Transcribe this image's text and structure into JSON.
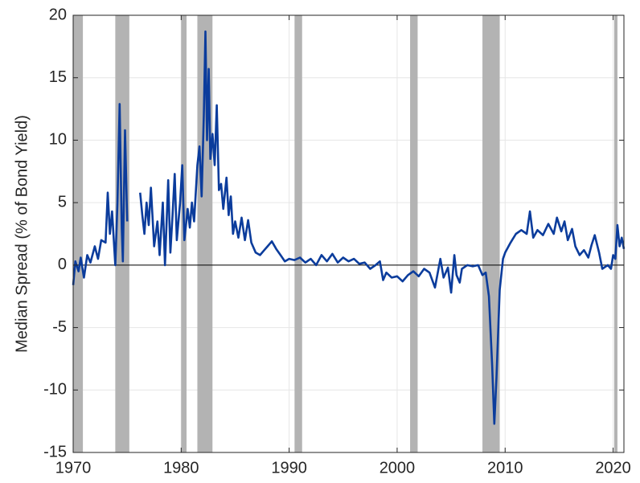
{
  "chart_data": {
    "type": "line",
    "y_label": "Median Spread (% of Bond Yield)",
    "xlim": [
      1970,
      2021
    ],
    "ylim": [
      -15,
      20
    ],
    "xticks": [
      1970,
      1980,
      1990,
      2000,
      2010,
      2020
    ],
    "yticks": [
      -15,
      -10,
      -5,
      0,
      5,
      10,
      15,
      20
    ],
    "grid": true,
    "shade_color": "#b3b3b3",
    "shaded_periods": [
      [
        1969.9,
        1970.9
      ],
      [
        1973.9,
        1975.2
      ],
      [
        1980.0,
        1980.5
      ],
      [
        1981.5,
        1982.9
      ],
      [
        1990.5,
        1991.2
      ],
      [
        2001.2,
        2001.9
      ],
      [
        2007.9,
        2009.5
      ],
      [
        2020.1,
        2020.4
      ]
    ],
    "x": [
      1970.0,
      1970.2,
      1970.5,
      1970.7,
      1971.0,
      1971.3,
      1971.6,
      1972.0,
      1972.3,
      1972.6,
      1973.0,
      1973.2,
      1973.4,
      1973.6,
      1973.9,
      1974.1,
      1974.3,
      1974.5,
      1974.6,
      1974.8,
      1975.0,
      1975.6,
      1976.2,
      1976.4,
      1976.6,
      1976.8,
      1977.0,
      1977.2,
      1977.5,
      1977.8,
      1978.0,
      1978.3,
      1978.5,
      1978.8,
      1979.0,
      1979.2,
      1979.4,
      1979.6,
      1979.9,
      1980.1,
      1980.3,
      1980.6,
      1980.8,
      1981.0,
      1981.2,
      1981.5,
      1981.7,
      1981.9,
      1982.1,
      1982.25,
      1982.4,
      1982.55,
      1982.7,
      1982.9,
      1983.1,
      1983.3,
      1983.5,
      1983.7,
      1983.9,
      1984.2,
      1984.4,
      1984.6,
      1984.8,
      1985.0,
      1985.3,
      1985.6,
      1985.9,
      1986.2,
      1986.5,
      1986.9,
      1987.3,
      1987.7,
      1988.0,
      1988.4,
      1988.8,
      1989.2,
      1989.6,
      1990.0,
      1990.5,
      1991.0,
      1991.5,
      1992.0,
      1992.5,
      1993.0,
      1993.5,
      1994.0,
      1994.5,
      1995.0,
      1995.5,
      1996.0,
      1996.5,
      1997.0,
      1997.5,
      1998.0,
      1998.4,
      1998.7,
      1999.0,
      1999.5,
      2000.0,
      2000.5,
      2001.0,
      2001.5,
      2002.0,
      2002.5,
      2003.0,
      2003.5,
      2004.0,
      2004.3,
      2004.7,
      2005.0,
      2005.3,
      2005.5,
      2005.8,
      2006.0,
      2006.5,
      2007.0,
      2007.5,
      2007.9,
      2008.2,
      2008.5,
      2008.8,
      2009.0,
      2009.2,
      2009.5,
      2009.8,
      2010.0,
      2010.5,
      2011.0,
      2011.5,
      2012.0,
      2012.3,
      2012.6,
      2013.0,
      2013.5,
      2014.0,
      2014.5,
      2014.8,
      2015.2,
      2015.5,
      2015.8,
      2016.2,
      2016.5,
      2016.9,
      2017.3,
      2017.7,
      2018.0,
      2018.3,
      2018.7,
      2019.0,
      2019.5,
      2019.8,
      2020.0,
      2020.2,
      2020.4,
      2020.6,
      2020.8,
      2021.0
    ],
    "series": [
      {
        "color": "#0b3c9c",
        "values": [
          -1.6,
          0.3,
          -0.5,
          0.6,
          -1.0,
          0.8,
          0.2,
          1.5,
          0.5,
          2.0,
          1.8,
          5.8,
          2.5,
          4.3,
          0.0,
          5.0,
          12.9,
          3.0,
          0.3,
          10.8,
          3.5,
          null,
          5.8,
          4.0,
          2.5,
          5.0,
          3.2,
          6.2,
          1.5,
          3.5,
          0.8,
          5.0,
          0.0,
          6.8,
          1.0,
          4.0,
          7.3,
          2.0,
          5.0,
          8.0,
          2.0,
          4.5,
          3.0,
          5.0,
          3.5,
          8.0,
          9.5,
          5.5,
          12.0,
          18.7,
          10.0,
          15.7,
          8.5,
          10.5,
          8.0,
          12.8,
          6.0,
          6.5,
          4.5,
          7.0,
          4.0,
          5.5,
          2.5,
          3.5,
          2.2,
          3.8,
          2.0,
          3.6,
          1.8,
          1.0,
          0.8,
          1.2,
          1.5,
          1.9,
          1.3,
          0.8,
          0.3,
          0.5,
          0.4,
          0.6,
          0.2,
          0.5,
          0.0,
          0.8,
          0.3,
          0.9,
          0.2,
          0.6,
          0.3,
          0.5,
          0.1,
          0.2,
          -0.3,
          0.0,
          0.3,
          -1.2,
          -0.6,
          -1.0,
          -0.9,
          -1.3,
          -0.8,
          -0.5,
          -0.9,
          -0.3,
          -0.6,
          -1.8,
          0.5,
          -1.0,
          -0.2,
          -2.2,
          0.8,
          -0.8,
          -1.4,
          -0.3,
          0.0,
          -0.1,
          0.0,
          -0.8,
          -0.6,
          -2.5,
          -8.0,
          -12.7,
          -9.0,
          -2.0,
          0.5,
          1.0,
          1.8,
          2.5,
          2.8,
          2.5,
          4.3,
          2.2,
          2.8,
          2.4,
          3.3,
          2.5,
          3.8,
          2.7,
          3.5,
          2.0,
          2.9,
          1.5,
          0.8,
          1.2,
          0.6,
          1.6,
          2.4,
          1.0,
          -0.3,
          0.0,
          -0.3,
          0.8,
          0.5,
          3.2,
          1.5,
          2.2,
          1.3
        ]
      }
    ]
  }
}
